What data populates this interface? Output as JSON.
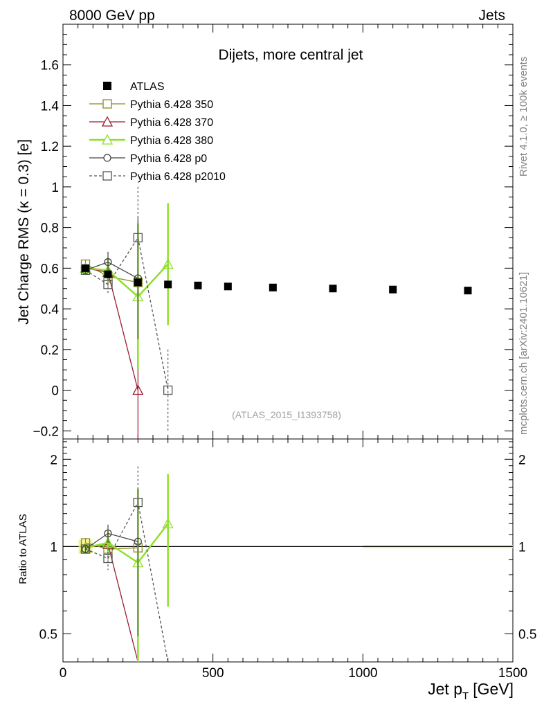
{
  "header": {
    "left": "8000 GeV pp",
    "right": "Jets"
  },
  "side_labels": {
    "rivet": "Rivet 4.1.0, ≥ 100k events",
    "mcplots": "mcplots.cern.ch [arXiv:2401.10621]"
  },
  "chart_data": {
    "type": "line",
    "title": "Dijets, more central jet",
    "watermark": "(ATLAS_2015_I1393758)",
    "ylabel": "Jet Charge RMS (κ = 0.3) [e]",
    "xlabel_main": "Jet p",
    "xlabel_sub": "T",
    "xlabel_unit": "[GeV]",
    "ratio_ylabel": "Ratio to ATLAS",
    "xlim": [
      0,
      1500
    ],
    "ylim": [
      -0.24,
      1.8
    ],
    "ratio_ylim": [
      0.4,
      2.35
    ],
    "x_ticks": [
      0,
      500,
      1000,
      1500
    ],
    "y_ticks": [
      -0.2,
      0,
      0.2,
      0.4,
      0.6,
      0.8,
      1,
      1.2,
      1.4,
      1.6
    ],
    "y_tick_labels": [
      "−0.2",
      "0",
      "0.2",
      "0.4",
      "0.6",
      "0.8",
      "1",
      "1.2",
      "1.4",
      "1.6"
    ],
    "ratio_ticks": [
      0.5,
      1,
      2
    ],
    "ratio_tick_labels": [
      "0.5",
      "1",
      "2"
    ],
    "reference": {
      "name": "ATLAS",
      "x": [
        75,
        150,
        250,
        350,
        450,
        550,
        700,
        900,
        1100,
        1350
      ],
      "y": [
        0.6,
        0.57,
        0.53,
        0.52,
        0.515,
        0.51,
        0.505,
        0.5,
        0.495,
        0.49
      ]
    },
    "series": [
      {
        "name": "Pythia 6.428 350",
        "color": "#8b8b1e",
        "marker": "square",
        "dash": "",
        "x": [
          75,
          150,
          250
        ],
        "y": [
          0.62,
          0.56,
          0.53
        ],
        "err": [
          0.02,
          0.05,
          0.3
        ],
        "ratio": [
          1.03,
          0.98,
          0.99
        ],
        "ratio_err": [
          0.04,
          0.08,
          0.6
        ]
      },
      {
        "name": "Pythia 6.428 370",
        "color": "#9b1b2f",
        "marker": "triangle",
        "dash": "",
        "x": [
          75,
          150,
          250
        ],
        "y": [
          0.6,
          0.58,
          0.0
        ],
        "err": [
          0.02,
          0.05,
          0.5
        ],
        "ratio": [
          0.99,
          1.02,
          0.0
        ],
        "ratio_err": [
          0.03,
          0.08,
          0.9
        ]
      },
      {
        "name": "Pythia 6.428 380",
        "color": "#8ee02a",
        "marker": "triangle",
        "dash": "",
        "x": [
          75,
          150,
          250,
          350
        ],
        "y": [
          0.6,
          0.59,
          0.46,
          0.62
        ],
        "err": [
          0.02,
          0.06,
          0.36,
          0.3
        ],
        "ratio": [
          0.99,
          1.03,
          0.88,
          1.2
        ],
        "ratio_err": [
          0.03,
          0.1,
          0.7,
          0.58
        ]
      },
      {
        "name": "Pythia 6.428 p0",
        "color": "#444444",
        "marker": "circle",
        "dash": "",
        "x": [
          75,
          150,
          250
        ],
        "y": [
          0.59,
          0.63,
          0.55
        ],
        "err": [
          0.02,
          0.05,
          0.3
        ],
        "ratio": [
          0.98,
          1.11,
          1.04
        ],
        "ratio_err": [
          0.03,
          0.08,
          0.55
        ]
      },
      {
        "name": "Pythia 6.428 p2010",
        "color": "#555555",
        "marker": "square",
        "dash": "4,3",
        "x": [
          75,
          150,
          250,
          350
        ],
        "y": [
          0.59,
          0.52,
          0.75,
          0.0
        ],
        "err": [
          0.02,
          0.05,
          0.25,
          0.2
        ],
        "ratio": [
          0.98,
          0.91,
          1.42,
          0.0
        ],
        "ratio_err": [
          0.03,
          0.08,
          0.47,
          0.4
        ]
      }
    ]
  }
}
